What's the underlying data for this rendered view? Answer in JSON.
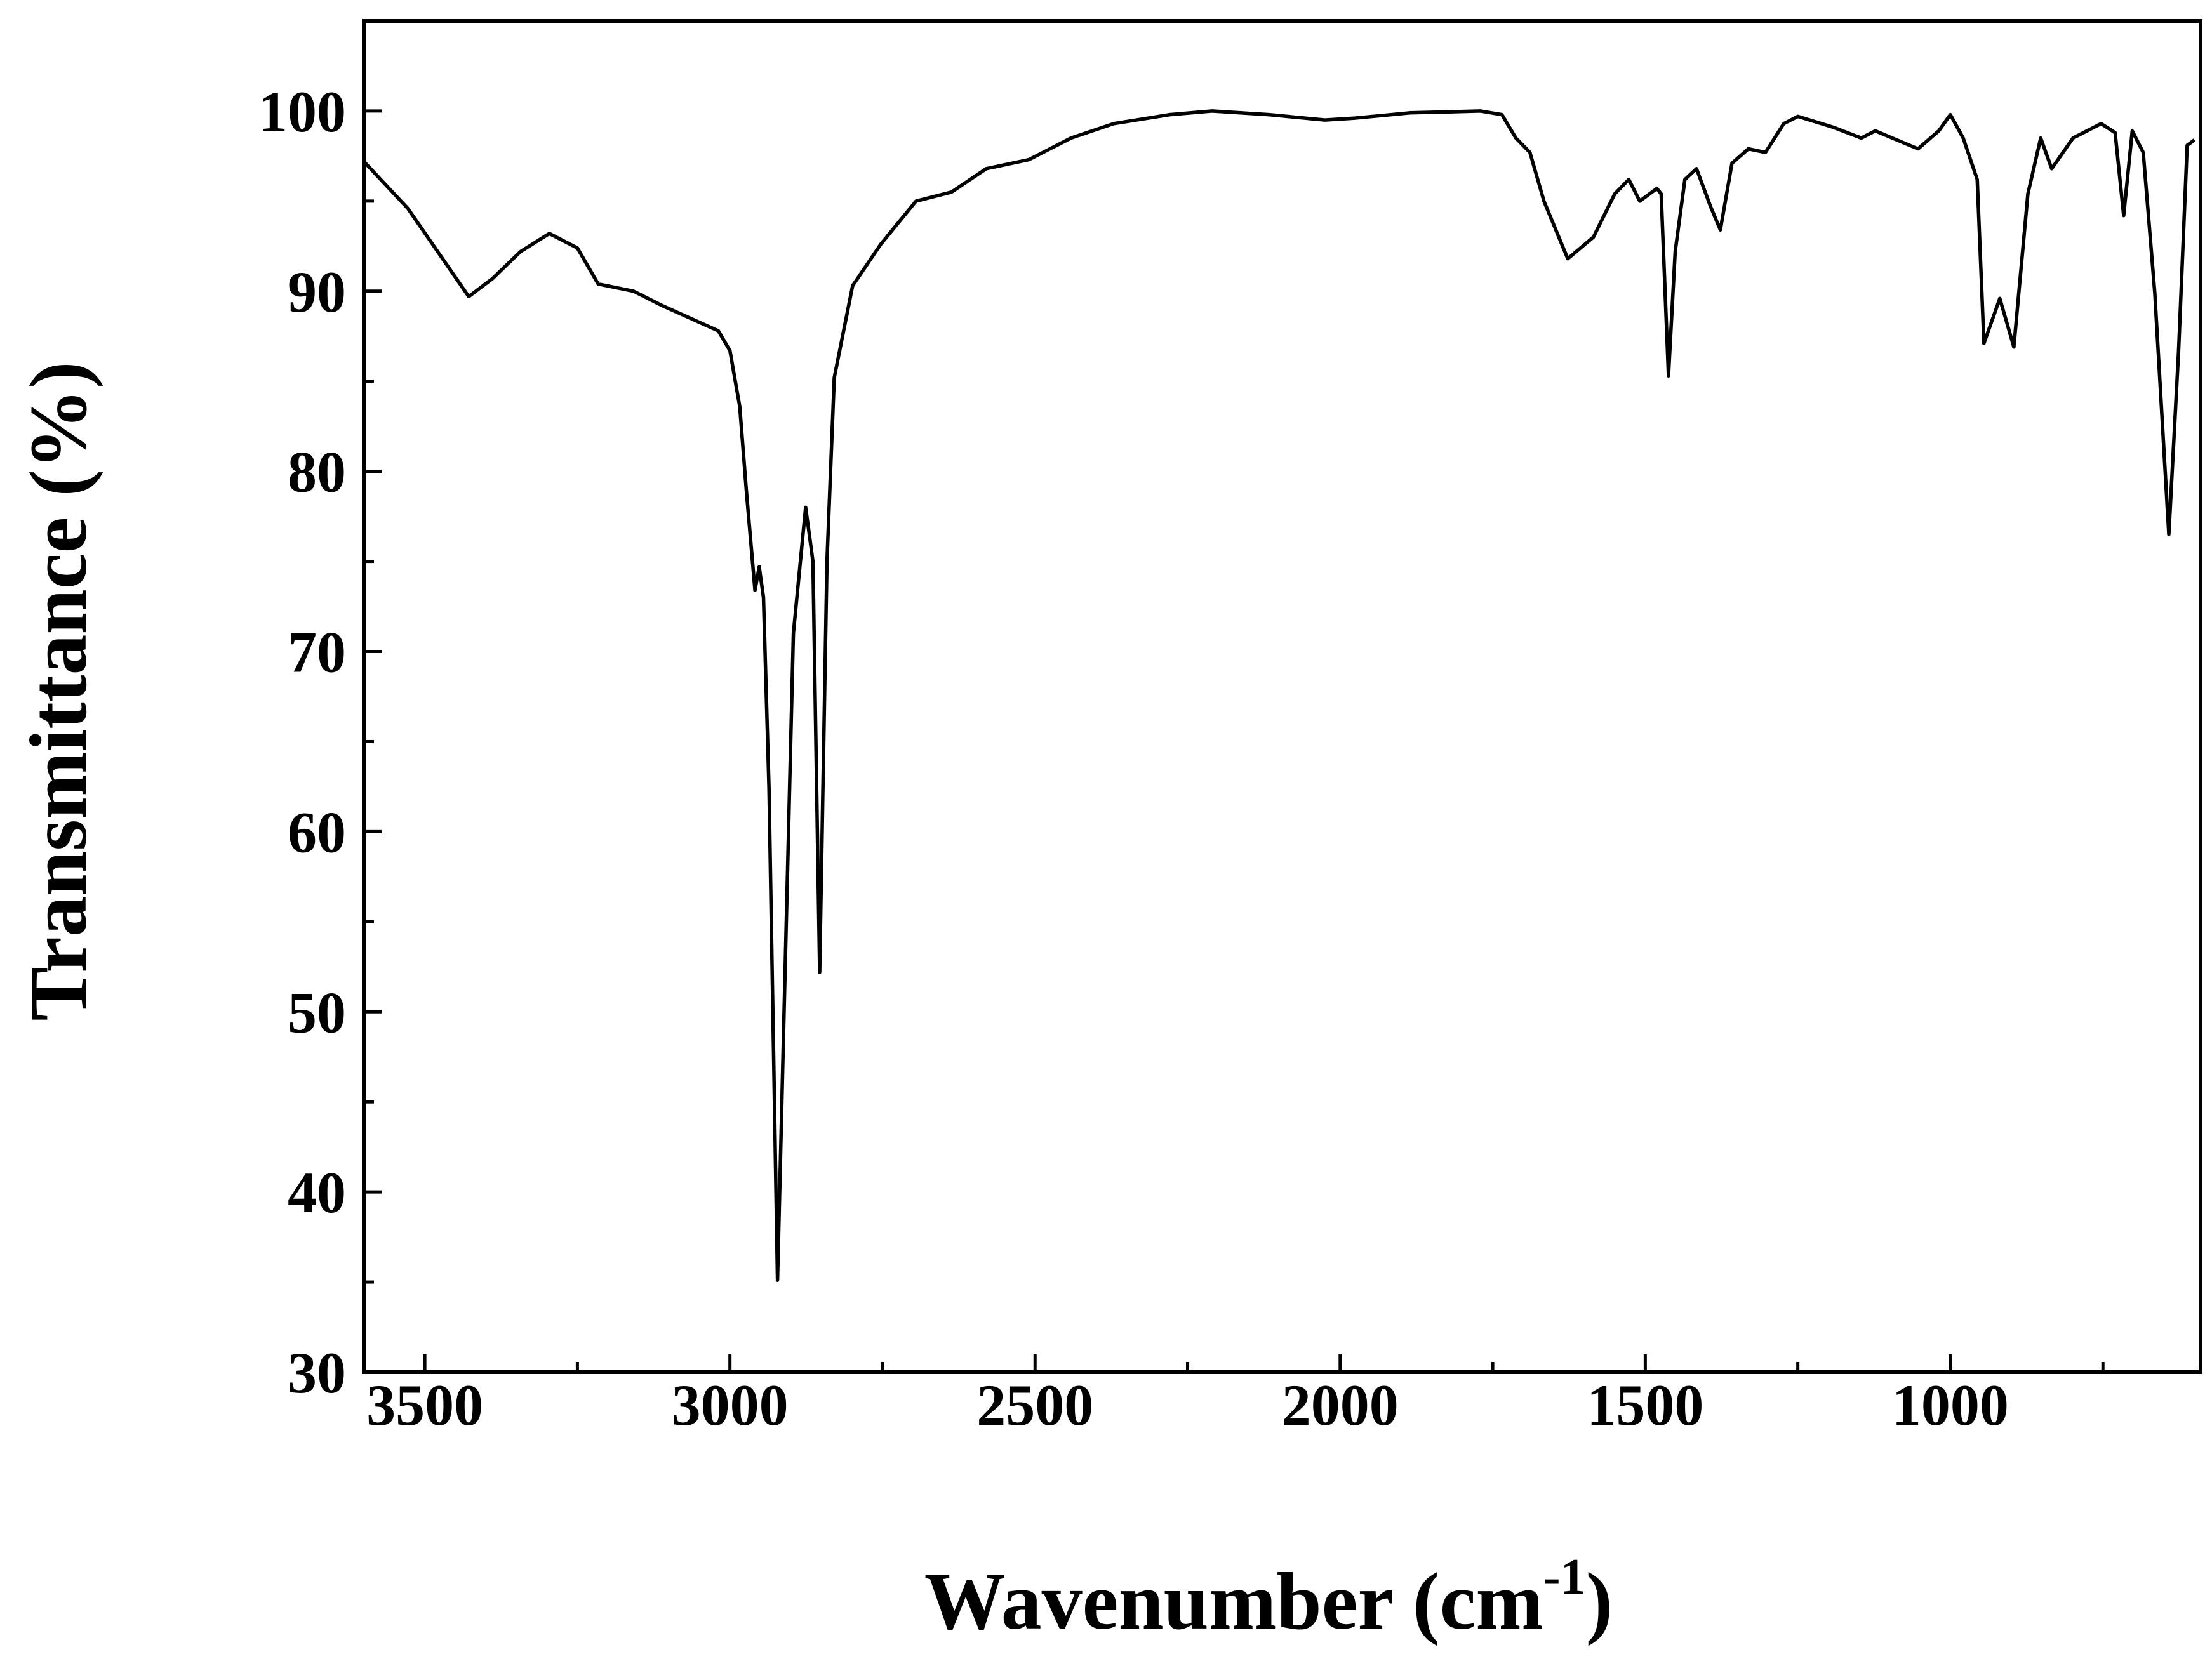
{
  "chart_data": {
    "type": "line",
    "title": "",
    "xlabel": "Wavenumber (cm",
    "xlabel_superscript": "-1",
    "xlabel_close": ")",
    "ylabel": "Transmittance (%)",
    "xlim": [
      3600,
      590
    ],
    "ylim": [
      30,
      105
    ],
    "x_reversed": true,
    "grid": false,
    "line_color": "#000000",
    "x_ticks": [
      3500,
      3000,
      2500,
      2000,
      1500,
      1000
    ],
    "x_tick_labels": [
      "3500",
      "3000",
      "2500",
      "2000",
      "1500",
      "1000"
    ],
    "y_ticks": [
      30,
      40,
      50,
      60,
      70,
      80,
      90,
      100
    ],
    "y_tick_labels": [
      "30",
      "40",
      "50",
      "60",
      "70",
      "80",
      "90",
      "100"
    ],
    "series": [
      {
        "x": [
          3600,
          3528,
          3428,
          3389,
          3343,
          3296,
          3250,
          3216,
          3158,
          3111,
          3065,
          3019,
          3000,
          2984,
          2973,
          2959,
          2952,
          2945,
          2936,
          2922,
          2908,
          2896,
          2876,
          2864,
          2853,
          2841,
          2829,
          2799,
          2753,
          2695,
          2637,
          2580,
          2510,
          2441,
          2371,
          2279,
          2210,
          2117,
          2025,
          1978,
          1886,
          1770,
          1735,
          1712,
          1689,
          1666,
          1627,
          1585,
          1550,
          1527,
          1509,
          1481,
          1474,
          1462,
          1451,
          1435,
          1416,
          1393,
          1377,
          1358,
          1331,
          1303,
          1273,
          1250,
          1192,
          1146,
          1123,
          1088,
          1053,
          1019,
          1000,
          979,
          956,
          945,
          919,
          896,
          873,
          852,
          834,
          799,
          753,
          730,
          716,
          702,
          684,
          665,
          642,
          626,
          612,
          600
        ],
        "y": [
          97.2,
          94.6,
          89.7,
          90.7,
          92.2,
          93.2,
          92.4,
          90.4,
          90.0,
          89.2,
          88.5,
          87.8,
          86.7,
          83.6,
          78.9,
          73.4,
          74.7,
          73.0,
          62.4,
          35.1,
          54.5,
          71.0,
          78.0,
          75.0,
          52.2,
          75.0,
          85.2,
          90.3,
          92.6,
          95.0,
          95.5,
          96.8,
          97.3,
          98.5,
          99.3,
          99.8,
          100.0,
          99.8,
          99.5,
          99.6,
          99.9,
          100.0,
          99.8,
          98.5,
          97.7,
          95.0,
          91.8,
          93.0,
          95.4,
          96.2,
          95.0,
          95.7,
          95.4,
          85.3,
          92.2,
          96.2,
          96.8,
          94.7,
          93.4,
          97.1,
          97.9,
          97.7,
          99.3,
          99.7,
          99.1,
          98.5,
          98.9,
          98.4,
          97.9,
          98.9,
          99.8,
          98.5,
          96.2,
          87.1,
          89.6,
          86.9,
          95.4,
          98.5,
          96.8,
          98.5,
          99.3,
          98.8,
          94.2,
          98.9,
          97.7,
          89.9,
          76.5,
          86.7,
          98.1,
          98.4
        ]
      }
    ]
  }
}
